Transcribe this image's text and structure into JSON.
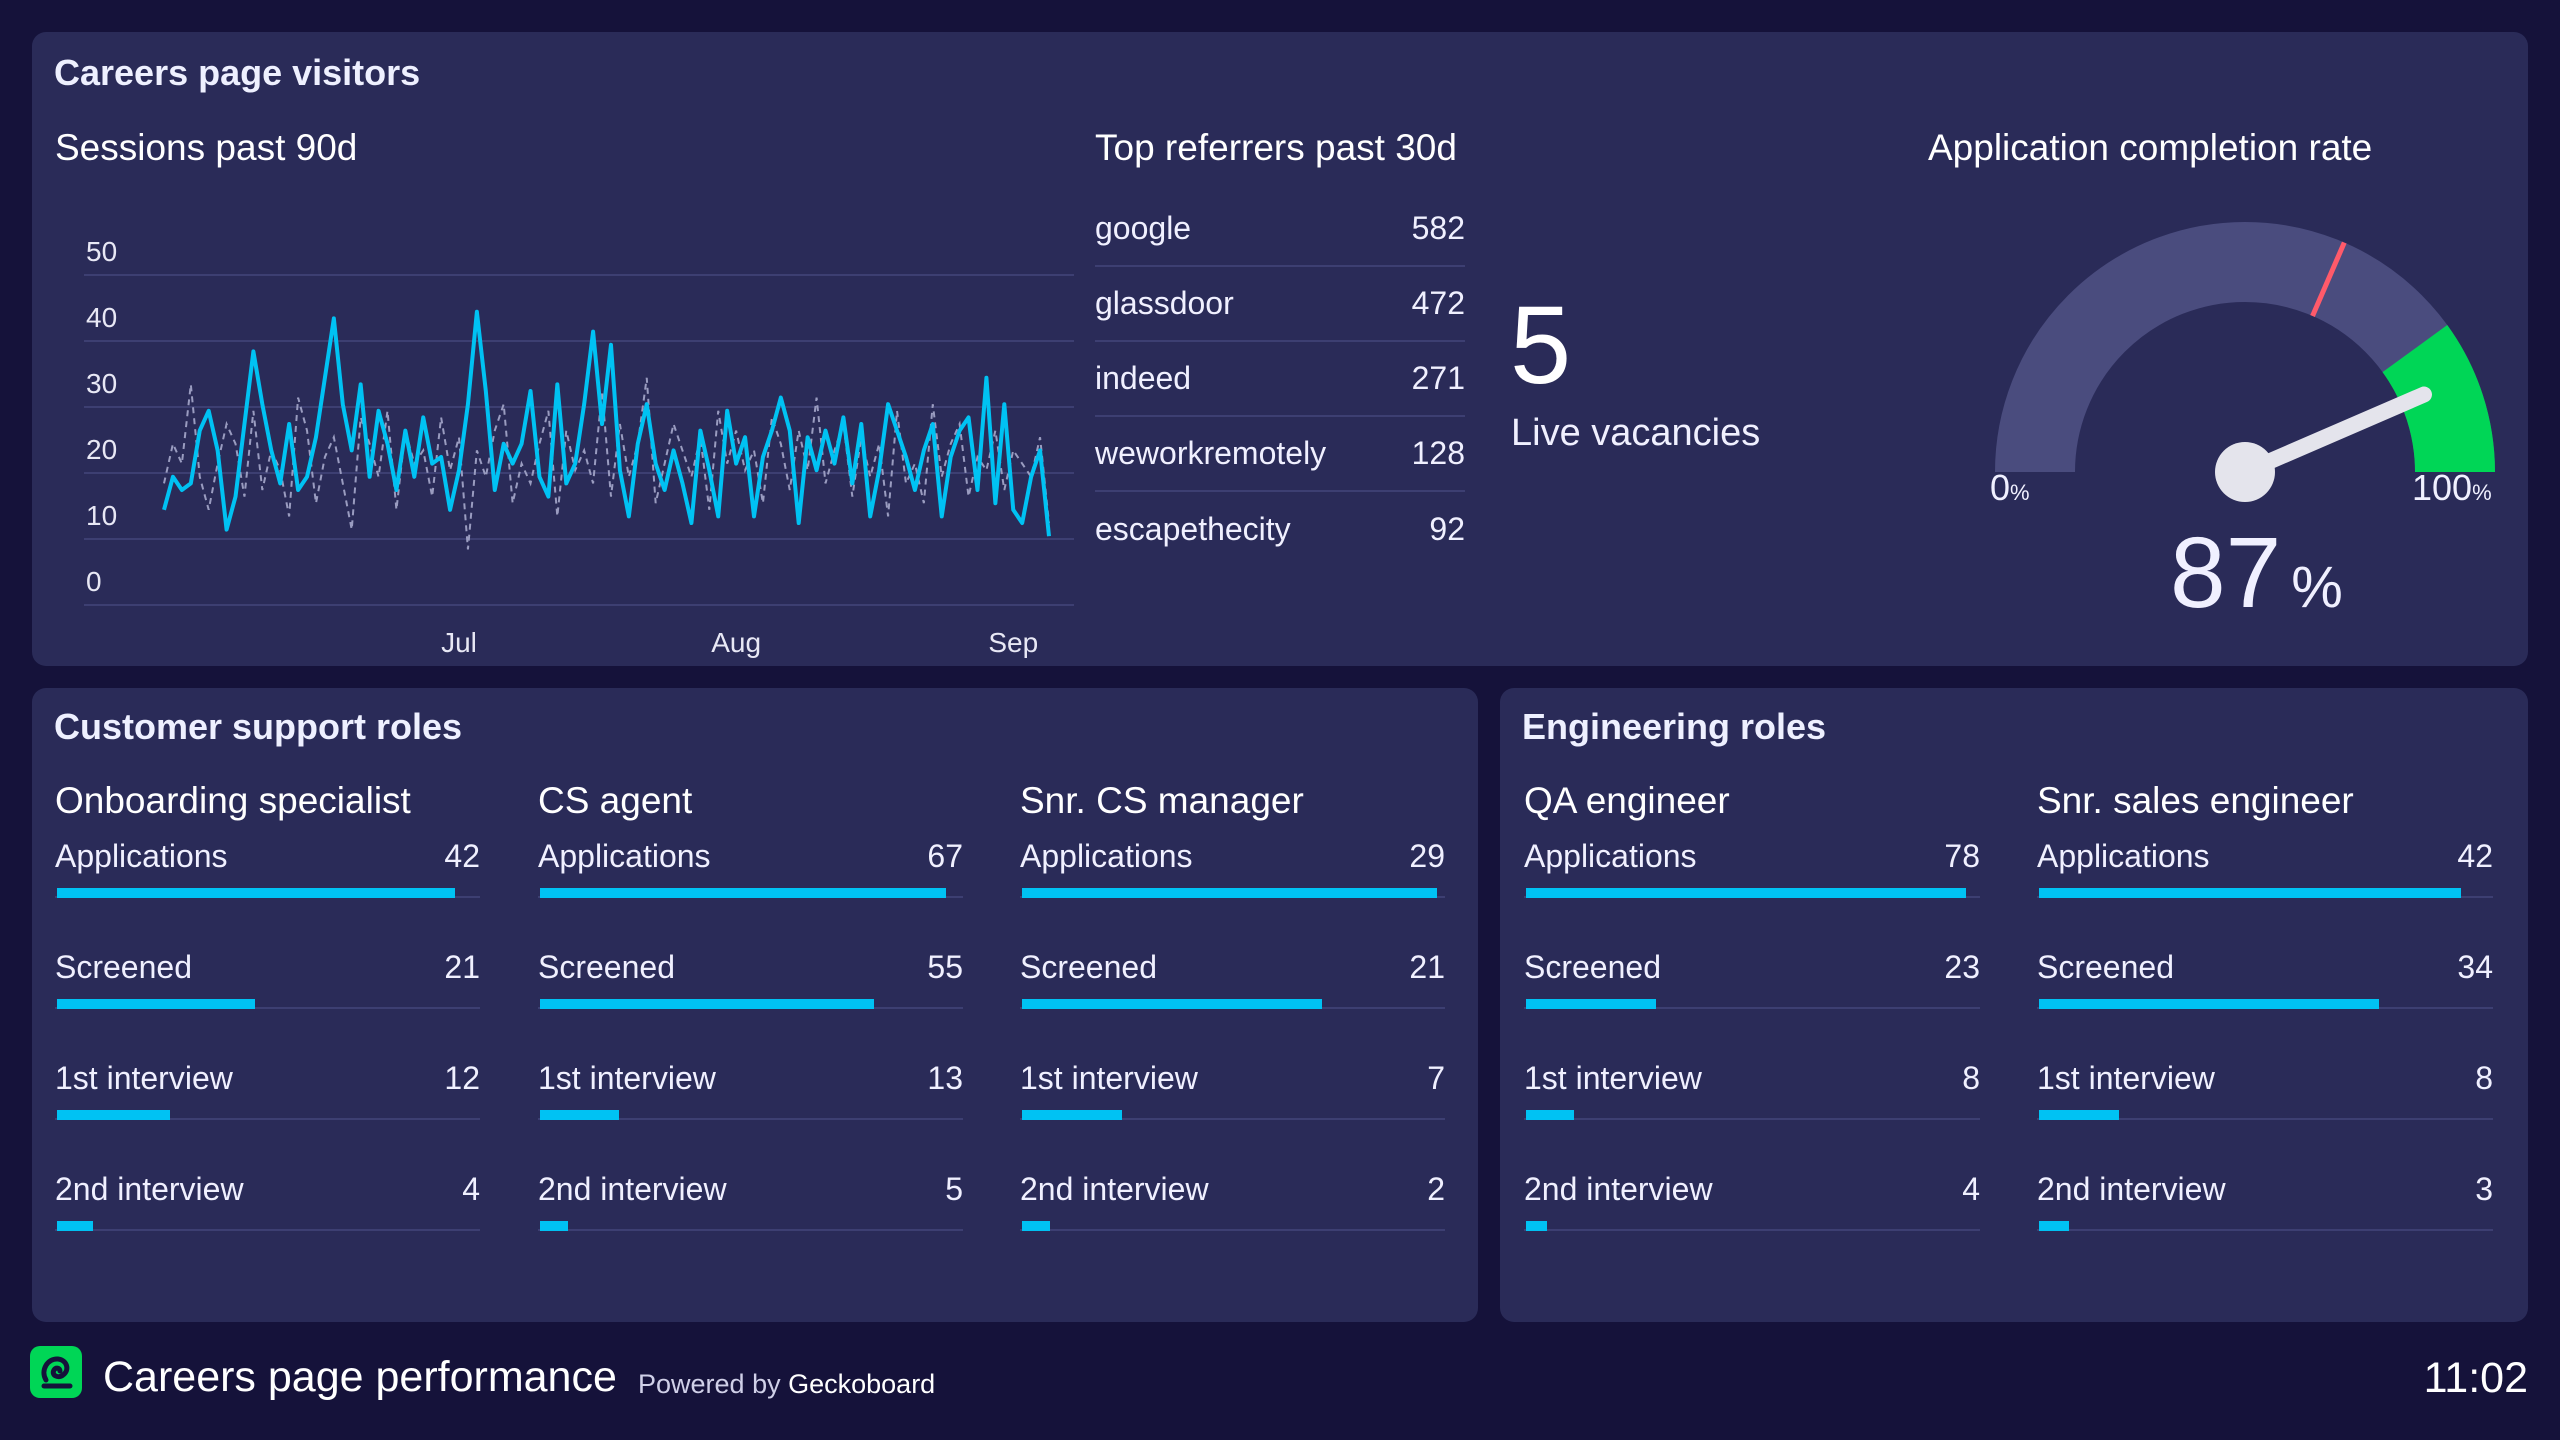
{
  "colors": {
    "background": "#15123a",
    "panel": "#2a2b58",
    "accent_bar": "#00c2f3",
    "gauge_green": "#00d656",
    "gauge_track": "#4a4c7e",
    "gauge_marker": "#ff5a6a"
  },
  "visitors_panel": {
    "title": "Careers page visitors",
    "sessions": {
      "title": "Sessions past 90d"
    },
    "referrers": {
      "title": "Top referrers past 30d",
      "items": [
        {
          "name": "google",
          "value": "582"
        },
        {
          "name": "glassdoor",
          "value": "472"
        },
        {
          "name": "indeed",
          "value": "271"
        },
        {
          "name": "weworkremotely",
          "value": "128"
        },
        {
          "name": "escapethecity",
          "value": "92"
        }
      ]
    },
    "vacancies": {
      "value": "5",
      "label": "Live vacancies"
    },
    "completion": {
      "title": "Application completion rate",
      "min_label": "0",
      "max_label": "100",
      "unit": "%",
      "value": "87",
      "value_fraction": 0.87,
      "green_start_fraction": 0.8,
      "marker_fraction": 0.63
    }
  },
  "chart_data": {
    "type": "line",
    "title": "Sessions past 90d",
    "ylim": [
      0,
      50
    ],
    "y_ticks": [
      "0",
      "10",
      "20",
      "30",
      "40",
      "50"
    ],
    "x_ticks": [
      {
        "label": "Jul",
        "day": 34
      },
      {
        "label": "Aug",
        "day": 65
      },
      {
        "label": "Sep",
        "day": 96
      }
    ],
    "grid": true,
    "series": [
      {
        "values": [
          12,
          17,
          15,
          16,
          24,
          27,
          21,
          9,
          14,
          25,
          36,
          28,
          21,
          16,
          25,
          15,
          17,
          23,
          32,
          41,
          28,
          21,
          31,
          17,
          27,
          22,
          15,
          24,
          17,
          26,
          19,
          20,
          12,
          18,
          28,
          42,
          30,
          15,
          22,
          19,
          22,
          30,
          17,
          14,
          31,
          16,
          19,
          28,
          39,
          25,
          37,
          18,
          11,
          22,
          28,
          19,
          15,
          21,
          16,
          10,
          24,
          18,
          11,
          27,
          19,
          23,
          11,
          20,
          24,
          29,
          24,
          10,
          23,
          18,
          24,
          19,
          26,
          16,
          25,
          11,
          18,
          28,
          24,
          20,
          15,
          21,
          25,
          11,
          20,
          24,
          26,
          15,
          32,
          13,
          28,
          12,
          10,
          17,
          21,
          8
        ]
      },
      {
        "dashed": true,
        "values": [
          16,
          22,
          19,
          31,
          17,
          12,
          19,
          25,
          22,
          14,
          27,
          15,
          21,
          18,
          11,
          29,
          24,
          13,
          20,
          23,
          16,
          9,
          26,
          22,
          17,
          27,
          12,
          24,
          19,
          21,
          14,
          26,
          18,
          23,
          6,
          21,
          17,
          24,
          28,
          13,
          19,
          16,
          22,
          27,
          11,
          24,
          18,
          21,
          16,
          30,
          14,
          25,
          17,
          22,
          32,
          13,
          19,
          25,
          21,
          17,
          23,
          12,
          27,
          19,
          24,
          18,
          21,
          13,
          26,
          22,
          15,
          24,
          18,
          29,
          16,
          21,
          25,
          14,
          23,
          17,
          22,
          11,
          27,
          16,
          19,
          13,
          28,
          17,
          22,
          25,
          14,
          20,
          18,
          24,
          15,
          21,
          19,
          17,
          23,
          10
        ]
      }
    ]
  },
  "cs_panel": {
    "title": "Customer support roles",
    "roles": [
      {
        "title": "Onboarding specialist",
        "stages": [
          {
            "label": "Applications",
            "value": "42",
            "fraction": 0.94
          },
          {
            "label": "Screened",
            "value": "21",
            "fraction": 0.47
          },
          {
            "label": "1st interview",
            "value": "12",
            "fraction": 0.27
          },
          {
            "label": "2nd interview",
            "value": "4",
            "fraction": 0.09
          }
        ]
      },
      {
        "title": "CS agent",
        "stages": [
          {
            "label": "Applications",
            "value": "67",
            "fraction": 0.96
          },
          {
            "label": "Screened",
            "value": "55",
            "fraction": 0.79
          },
          {
            "label": "1st interview",
            "value": "13",
            "fraction": 0.19
          },
          {
            "label": "2nd interview",
            "value": "5",
            "fraction": 0.07
          }
        ]
      },
      {
        "title": "Snr. CS manager",
        "stages": [
          {
            "label": "Applications",
            "value": "29",
            "fraction": 0.98
          },
          {
            "label": "Screened",
            "value": "21",
            "fraction": 0.71
          },
          {
            "label": "1st interview",
            "value": "7",
            "fraction": 0.24
          },
          {
            "label": "2nd interview",
            "value": "2",
            "fraction": 0.07
          }
        ]
      }
    ]
  },
  "eng_panel": {
    "title": "Engineering roles",
    "roles": [
      {
        "title": "QA engineer",
        "stages": [
          {
            "label": "Applications",
            "value": "78",
            "fraction": 0.97
          },
          {
            "label": "Screened",
            "value": "23",
            "fraction": 0.29
          },
          {
            "label": "1st interview",
            "value": "8",
            "fraction": 0.11
          },
          {
            "label": "2nd interview",
            "value": "4",
            "fraction": 0.05
          }
        ]
      },
      {
        "title": "Snr. sales engineer",
        "stages": [
          {
            "label": "Applications",
            "value": "42",
            "fraction": 0.93
          },
          {
            "label": "Screened",
            "value": "34",
            "fraction": 0.75
          },
          {
            "label": "1st interview",
            "value": "8",
            "fraction": 0.18
          },
          {
            "label": "2nd interview",
            "value": "3",
            "fraction": 0.07
          }
        ]
      }
    ]
  },
  "footer": {
    "logo_icon": "geckoboard-logo-icon",
    "title": "Careers page performance",
    "powered_prefix": "Powered by",
    "powered_brand": "Geckoboard",
    "clock": "11:02"
  }
}
